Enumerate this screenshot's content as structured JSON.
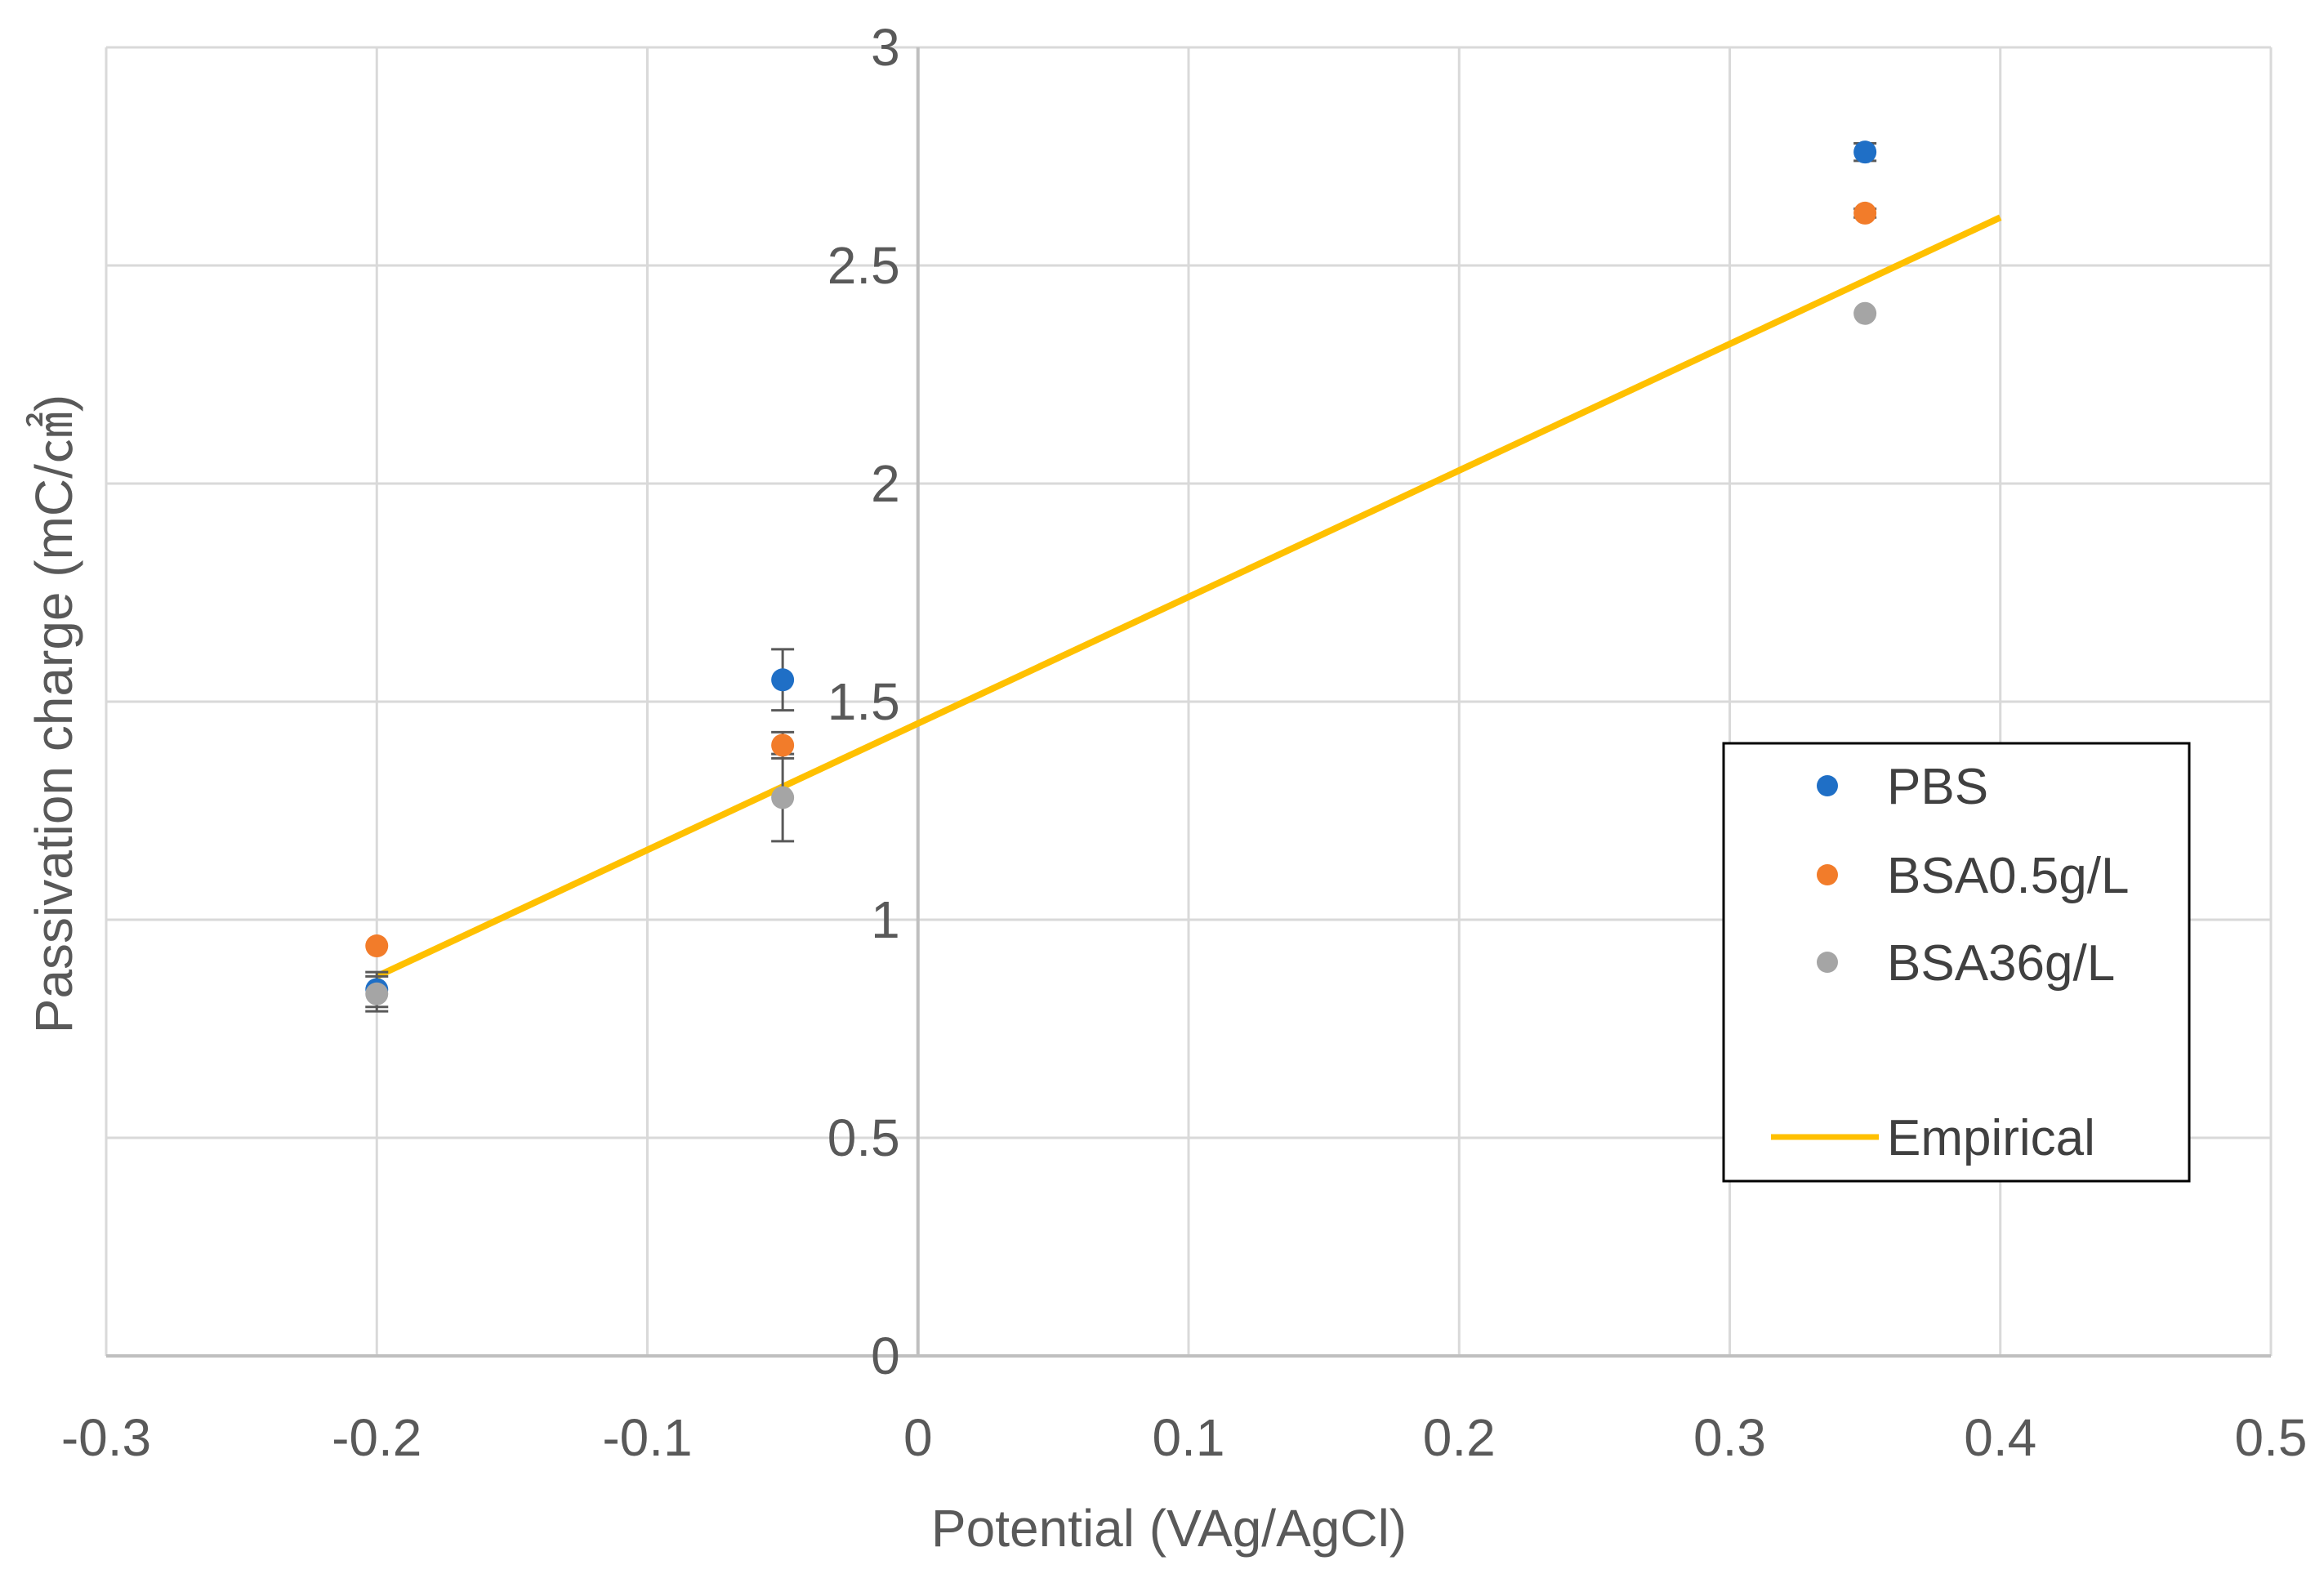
{
  "chart_data": {
    "type": "scatter",
    "title": "",
    "xlabel": "Potential (VAg/AgCl)",
    "ylabel": "Passivation charge (mC/㎠)",
    "xlim": [
      -0.3,
      0.5
    ],
    "ylim": [
      0,
      3
    ],
    "grid": true,
    "x_ticks": [
      "-0.3",
      "-0.2",
      "-0.1",
      "0",
      "0.1",
      "0.2",
      "0.3",
      "0.4",
      "0.5"
    ],
    "y_ticks": [
      "0",
      "0.5",
      "1",
      "1.5",
      "2",
      "2.5",
      "3"
    ],
    "legend_position": "right",
    "series": [
      {
        "name": "PBS",
        "kind": "markers",
        "color": "#1F6FC6",
        "points": [
          {
            "x": -0.2,
            "y": 0.84,
            "err": 0.04
          },
          {
            "x": -0.05,
            "y": 1.55,
            "err": 0.07
          },
          {
            "x": 0.35,
            "y": 2.76,
            "err": 0.02
          }
        ]
      },
      {
        "name": "BSA0.5g/L",
        "kind": "markers",
        "color": "#F27C2A",
        "points": [
          {
            "x": -0.2,
            "y": 0.94,
            "err": 0.0
          },
          {
            "x": -0.05,
            "y": 1.4,
            "err": 0.03
          },
          {
            "x": 0.35,
            "y": 2.62,
            "err": 0.01
          }
        ]
      },
      {
        "name": "BSA36g/L",
        "kind": "markers",
        "color": "#A5A5A5",
        "points": [
          {
            "x": -0.2,
            "y": 0.83,
            "err": 0.04
          },
          {
            "x": -0.05,
            "y": 1.28,
            "err": 0.1
          },
          {
            "x": 0.35,
            "y": 2.39,
            "err": 0.0
          }
        ]
      },
      {
        "name": "Empirical",
        "kind": "line",
        "color": "#FFC000",
        "points": [
          {
            "x": -0.2,
            "y": 0.87
          },
          {
            "x": 0.4,
            "y": 2.61
          }
        ]
      }
    ]
  },
  "colors": {
    "grid": "#D9D9D9",
    "axis": "#BFBFBF",
    "legend_border": "#000000"
  }
}
